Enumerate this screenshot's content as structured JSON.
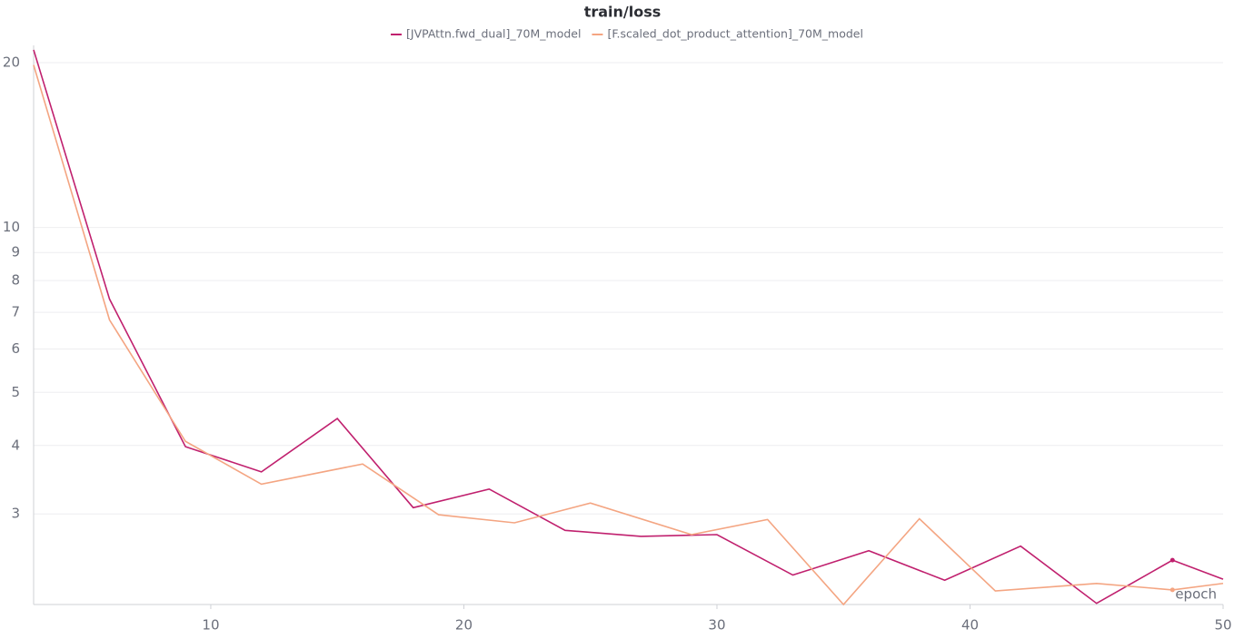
{
  "chart_data": {
    "type": "line",
    "title": "train/loss",
    "x_label": "epoch",
    "log_scale_y": true,
    "grid": true,
    "xlim": [
      3,
      50
    ],
    "xticks": [
      10,
      20,
      30,
      40,
      50
    ],
    "ylim": [
      2.05,
      21.5
    ],
    "yticks": [
      3,
      4,
      5,
      6,
      7,
      8,
      9,
      10,
      20
    ],
    "series": [
      {
        "name": "[JVPAttn.fwd_dual]_70M_model",
        "color": "#c0206e",
        "x": [
          3,
          6,
          9,
          12,
          15,
          18,
          21,
          24,
          27,
          30,
          33,
          36,
          39,
          42,
          45,
          48,
          50
        ],
        "values": [
          21.1,
          7.4,
          3.98,
          3.58,
          4.48,
          3.08,
          3.33,
          2.8,
          2.73,
          2.75,
          2.32,
          2.57,
          2.27,
          2.62,
          2.06,
          2.47,
          2.28
        ]
      },
      {
        "name": "[F.scaled_dot_product_attention]_70M_model",
        "color": "#f4a582",
        "x": [
          3,
          6,
          9,
          12,
          16,
          19,
          22,
          25,
          29,
          32,
          35,
          38,
          41,
          45,
          48,
          50
        ],
        "values": [
          19.8,
          6.78,
          4.07,
          3.4,
          3.7,
          2.99,
          2.89,
          3.14,
          2.75,
          2.93,
          2.05,
          2.94,
          2.17,
          2.24,
          2.18,
          2.24
        ]
      }
    ]
  }
}
